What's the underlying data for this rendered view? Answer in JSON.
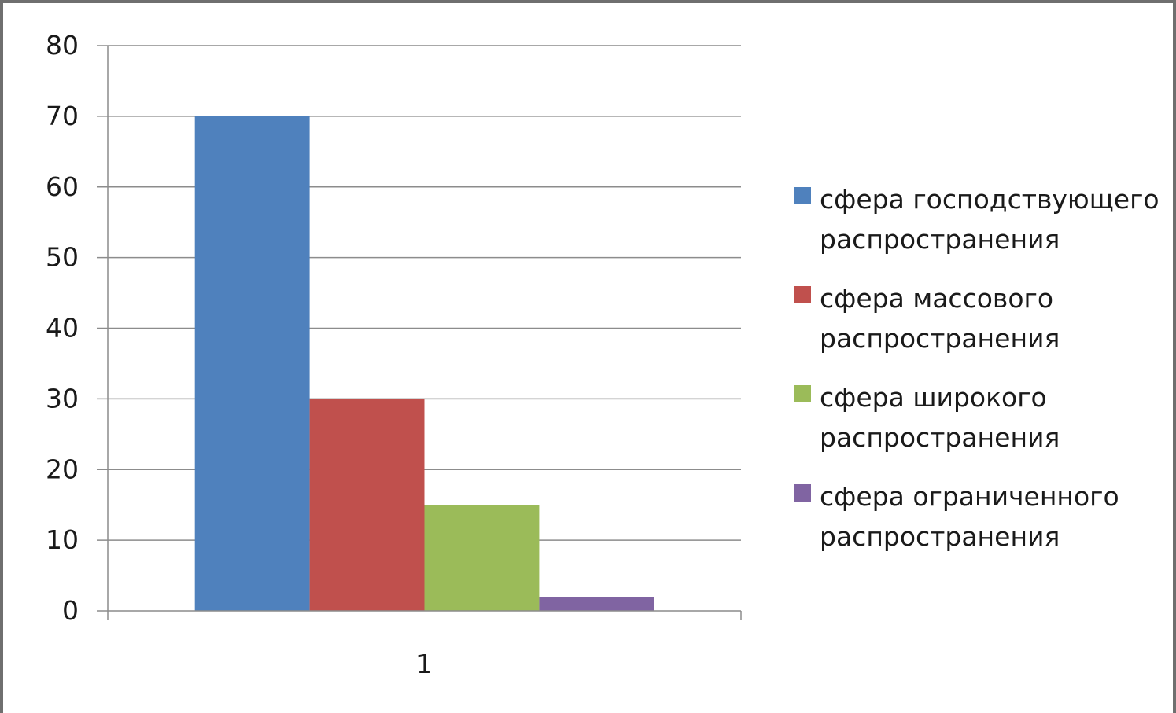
{
  "chart_data": {
    "type": "bar",
    "categories": [
      "1"
    ],
    "series": [
      {
        "name": "сфера господствующего распространения",
        "values": [
          70
        ],
        "color": "#4f81bd"
      },
      {
        "name": "сфера массового распространения",
        "values": [
          30
        ],
        "color": "#c0504d"
      },
      {
        "name": "сфера широкого распространения",
        "values": [
          15
        ],
        "color": "#9bbb59"
      },
      {
        "name": "сфера ограниченного распространения",
        "values": [
          2
        ],
        "color": "#8064a2"
      }
    ],
    "title": "",
    "xlabel": "",
    "ylabel": "",
    "ylim": [
      0,
      80
    ],
    "yticks": [
      "0",
      "10",
      "20",
      "30",
      "40",
      "50",
      "60",
      "70",
      "80"
    ],
    "grid": true,
    "legend": "right",
    "gridline_color": "#8c8c8c"
  }
}
